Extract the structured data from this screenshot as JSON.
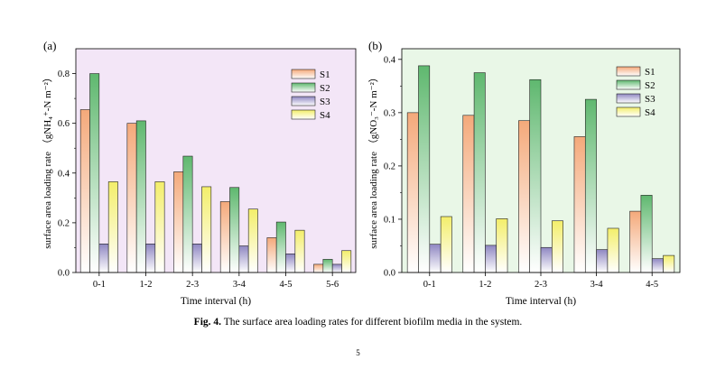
{
  "chart_data": [
    {
      "type": "bar",
      "panel_label": "(a)",
      "categories": [
        "0-1",
        "1-2",
        "2-3",
        "3-4",
        "4-5",
        "5-6"
      ],
      "series": [
        {
          "name": "S1",
          "values": [
            0.655,
            0.6,
            0.405,
            0.285,
            0.14,
            0.033
          ]
        },
        {
          "name": "S2",
          "values": [
            0.8,
            0.61,
            0.468,
            0.342,
            0.203,
            0.053
          ]
        },
        {
          "name": "S3",
          "values": [
            0.115,
            0.115,
            0.115,
            0.107,
            0.075,
            0.033
          ]
        },
        {
          "name": "S4",
          "values": [
            0.365,
            0.365,
            0.345,
            0.255,
            0.17,
            0.088
          ]
        }
      ],
      "xlabel": "Time interval (h)",
      "ylabel": "surface area loading rate （gNH₄⁺-N m⁻²）",
      "ylim": [
        0,
        0.9
      ],
      "yticks": [
        0.0,
        0.2,
        0.4,
        0.6,
        0.8
      ],
      "ytick_labels": [
        "0.0",
        "0.2",
        "0.4",
        "0.6",
        "0.8"
      ],
      "legend_placement": "top-right",
      "background": "#f3e6f7"
    },
    {
      "type": "bar",
      "panel_label": "(b)",
      "categories": [
        "0-1",
        "1-2",
        "2-3",
        "3-4",
        "4-5"
      ],
      "series": [
        {
          "name": "S1",
          "values": [
            0.3,
            0.295,
            0.285,
            0.255,
            0.115
          ]
        },
        {
          "name": "S2",
          "values": [
            0.388,
            0.375,
            0.362,
            0.325,
            0.145
          ]
        },
        {
          "name": "S3",
          "values": [
            0.053,
            0.051,
            0.047,
            0.043,
            0.026
          ]
        },
        {
          "name": "S4",
          "values": [
            0.105,
            0.101,
            0.097,
            0.083,
            0.032
          ]
        }
      ],
      "xlabel": "Time interval (h)",
      "ylabel": "surface area loading rate （gNO₃⁻-N m⁻²）",
      "ylim": [
        0,
        0.42
      ],
      "yticks": [
        0.0,
        0.1,
        0.2,
        0.3,
        0.4
      ],
      "ytick_labels": [
        "0.0",
        "0.1",
        "0.2",
        "0.3",
        "0.4"
      ],
      "legend_placement": "top-right",
      "background": "#e9f7e7"
    }
  ],
  "series_colors": {
    "S1": "#f4a97a",
    "S2": "#5fb86f",
    "S3": "#8f87c2",
    "S4": "#f3ee6a"
  },
  "caption": {
    "label": "Fig. 4.",
    "text": "The surface area loading rates for different biofilm media in the system."
  },
  "page_number": "5"
}
